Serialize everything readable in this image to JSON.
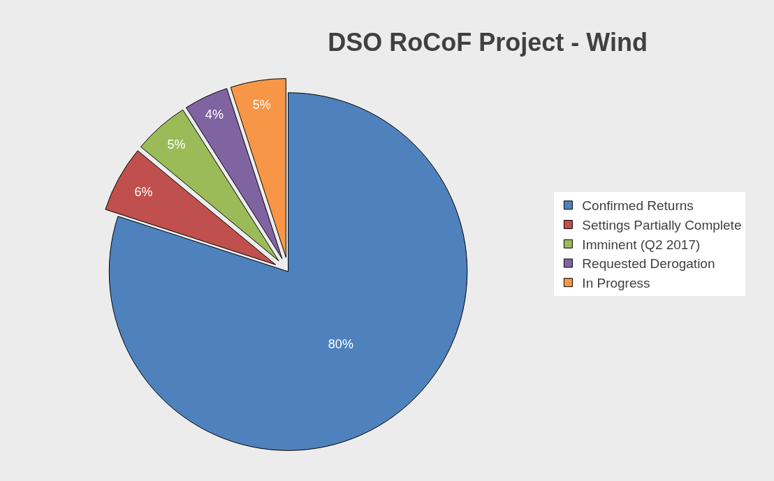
{
  "chart_data": {
    "type": "pie",
    "title": "DSO RoCoF Project - Wind",
    "categories": [
      "Confirmed Returns",
      "Settings Partially Complete",
      "Imminent (Q2 2017)",
      "Requested Derogation",
      "In Progress"
    ],
    "values": [
      80,
      6,
      5,
      4,
      5
    ],
    "value_labels": [
      "80%",
      "6%",
      "5%",
      "4%",
      "5%"
    ],
    "colors": [
      "#4f81bd",
      "#c0504d",
      "#9bbb59",
      "#8064a2",
      "#f79646"
    ],
    "legend": "right"
  }
}
